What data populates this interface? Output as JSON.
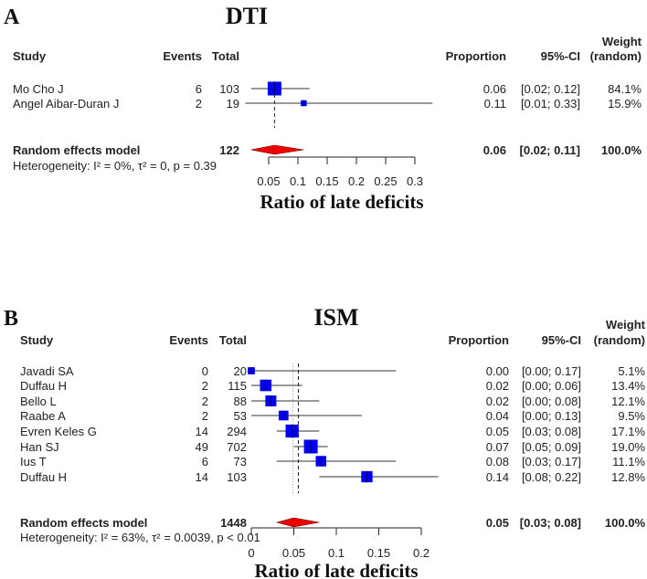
{
  "chart_data": [
    {
      "type": "forest",
      "panel_label": "A",
      "title": "DTI",
      "headers": {
        "study": "Study",
        "events": "Events",
        "total": "Total",
        "proportion": "Proportion",
        "ci": "95%-CI",
        "weight_top": "Weight",
        "weight_bottom": "(random)"
      },
      "studies": [
        {
          "study": "Mo Cho J",
          "events": "6",
          "total": "103",
          "proportion": "0.06",
          "ci": "[0.02; 0.12]",
          "weight": "84.1%",
          "est": 0.06,
          "lo": 0.02,
          "hi": 0.12,
          "w": 84.1
        },
        {
          "study": "Angel Aibar-Duran J",
          "events": "2",
          "total": "19",
          "proportion": "0.11",
          "ci": "[0.01; 0.33]",
          "weight": "15.9%",
          "est": 0.11,
          "lo": 0.01,
          "hi": 0.33,
          "w": 15.9
        }
      ],
      "summary": {
        "label": "Random effects model",
        "total": "122",
        "proportion": "0.06",
        "ci": "[0.02; 0.11]",
        "weight": "100.0%",
        "est": 0.06,
        "lo": 0.02,
        "hi": 0.11
      },
      "heterogeneity": "Heterogeneity: I² = 0%, τ² = 0, p = 0.39",
      "xticks": [
        "0.05",
        "0.1",
        "0.15",
        "0.2",
        "0.25",
        "0.3"
      ],
      "xlim": [
        0.05,
        0.3
      ],
      "xlabel": "Ratio of late deficits",
      "colors": {
        "square": "#0000ee",
        "diamond": "#ee0000"
      }
    },
    {
      "type": "forest",
      "panel_label": "B",
      "title": "ISM",
      "headers": {
        "study": "Study",
        "events": "Events",
        "total": "Total",
        "proportion": "Proportion",
        "ci": "95%-CI",
        "weight_top": "Weight",
        "weight_bottom": "(random)"
      },
      "studies": [
        {
          "study": "Javadi SA",
          "events": "0",
          "total": "20",
          "proportion": "0.00",
          "ci": "[0.00; 0.17]",
          "weight": "5.1%",
          "est": 0.0,
          "lo": 0.0,
          "hi": 0.17,
          "w": 5.1
        },
        {
          "study": "Duffau H",
          "events": "2",
          "total": "115",
          "proportion": "0.02",
          "ci": "[0.00; 0.06]",
          "weight": "13.4%",
          "est": 0.017,
          "lo": 0.0,
          "hi": 0.06,
          "w": 13.4
        },
        {
          "study": "Bello L",
          "events": "2",
          "total": "88",
          "proportion": "0.02",
          "ci": "[0.00; 0.08]",
          "weight": "12.1%",
          "est": 0.023,
          "lo": 0.0,
          "hi": 0.08,
          "w": 12.1
        },
        {
          "study": "Raabe A",
          "events": "2",
          "total": "53",
          "proportion": "0.04",
          "ci": "[0.00; 0.13]",
          "weight": "9.5%",
          "est": 0.038,
          "lo": 0.0,
          "hi": 0.13,
          "w": 9.5
        },
        {
          "study": "Evren Keles G",
          "events": "14",
          "total": "294",
          "proportion": "0.05",
          "ci": "[0.03; 0.08]",
          "weight": "17.1%",
          "est": 0.048,
          "lo": 0.03,
          "hi": 0.08,
          "w": 17.1
        },
        {
          "study": "Han SJ",
          "events": "49",
          "total": "702",
          "proportion": "0.07",
          "ci": "[0.05; 0.09]",
          "weight": "19.0%",
          "est": 0.07,
          "lo": 0.05,
          "hi": 0.09,
          "w": 19.0
        },
        {
          "study": "Ius T",
          "events": "6",
          "total": "73",
          "proportion": "0.08",
          "ci": "[0.03; 0.17]",
          "weight": "11.1%",
          "est": 0.082,
          "lo": 0.03,
          "hi": 0.17,
          "w": 11.1
        },
        {
          "study": "Duffau H",
          "events": "14",
          "total": "103",
          "proportion": "0.14",
          "ci": "[0.08; 0.22]",
          "weight": "12.8%",
          "est": 0.136,
          "lo": 0.08,
          "hi": 0.22,
          "w": 12.8
        }
      ],
      "summary": {
        "label": "Random effects model",
        "total": "1448",
        "proportion": "0.05",
        "ci": "[0.03; 0.08]",
        "weight": "100.0%",
        "est": 0.05,
        "lo": 0.03,
        "hi": 0.08
      },
      "common_line": 0.049,
      "heterogeneity": "Heterogeneity: I² = 63%, τ² = 0.0039, p < 0.01",
      "xticks": [
        "0",
        "0.05",
        "0.1",
        "0.15",
        "0.2"
      ],
      "xlim": [
        0,
        0.2
      ],
      "xlabel": "Ratio of late deficits",
      "colors": {
        "square": "#0000ee",
        "diamond": "#ee0000"
      }
    }
  ]
}
